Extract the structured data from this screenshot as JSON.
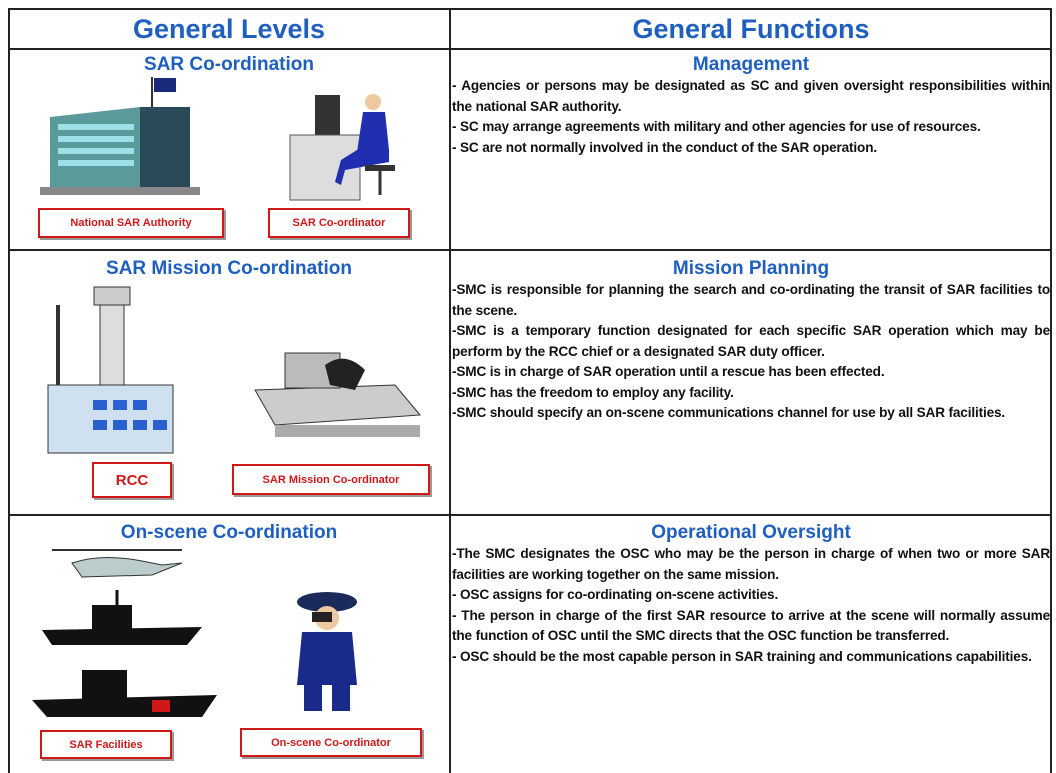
{
  "header": {
    "left": "General Levels",
    "right": "General Functions"
  },
  "rows": [
    {
      "level": "SAR Co-ordination",
      "labels": [
        "National SAR Authority",
        "SAR Co-ordinator"
      ],
      "function": "Management",
      "bullets": [
        "- Agencies or persons may be designated as SC and given oversight responsibilities within the national SAR authority.",
        "- SC may arrange agreements with military and other agencies for use of resources.",
        "- SC are not normally involved in the conduct of the SAR operation."
      ]
    },
    {
      "level": "SAR Mission Co-ordination",
      "labels": [
        "RCC",
        "SAR Mission Co-ordinator"
      ],
      "function": "Mission Planning",
      "bullets": [
        "-SMC is responsible for planning the search and co-ordinating the transit of SAR facilities to the scene.",
        "-SMC is a temporary function designated for each specific SAR operation which may be perform by the RCC chief or a designated SAR duty officer.",
        "-SMC is in charge of SAR operation until a rescue has been effected.",
        "-SMC has the freedom to employ any facility.",
        "-SMC should specify an on-scene communications channel for use by all SAR facilities."
      ]
    },
    {
      "level": "On-scene Co-ordination",
      "labels": [
        "SAR Facilities",
        "On-scene Co-ordinator"
      ],
      "function": "Operational Oversight",
      "bullets": [
        "-The SMC designates the OSC who may be the person in charge of when two or more SAR facilities are working together on the same mission.",
        "- OSC assigns for co-ordinating on-scene activities.",
        "- The person in charge of the first SAR resource to arrive at the scene will normally assume the function of OSC until the SMC directs that the OSC function be transferred.",
        "- OSC should be the most capable person in SAR training and communications capabilities."
      ]
    }
  ]
}
